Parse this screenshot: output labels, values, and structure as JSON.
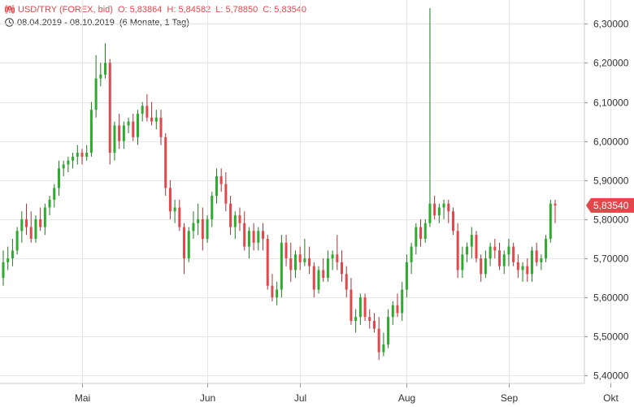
{
  "header": {
    "symbol": "USD/TRY (FOREX, bid)",
    "open": "O: 5,83864",
    "high": "H: 5,84582",
    "low": "L: 5,78850",
    "close": "C: 5,83540",
    "date_range": "08.04.2019 - 08.10.2019",
    "period": "(6 Monate, 1 Tag)"
  },
  "colors": {
    "up": "#2eaa2e",
    "down": "#e2474b",
    "accent": "#e2474b",
    "grid": "#e6e6e6",
    "axis_text": "#333333"
  },
  "chart_data": {
    "type": "candlestick",
    "ylim": [
      5.38,
      6.34
    ],
    "yticks": [
      5.4,
      5.5,
      5.6,
      5.7,
      5.8,
      5.9,
      6.0,
      6.1,
      6.2,
      6.3
    ],
    "ytick_labels": [
      "5,40000",
      "5,50000",
      "5,60000",
      "5,70000",
      "5,80000",
      "5,90000",
      "6,00000",
      "6,10000",
      "6,20000",
      "6,30000"
    ],
    "xticks": [
      {
        "label": "Mai",
        "index": 17
      },
      {
        "label": "Jun",
        "index": 44
      },
      {
        "label": "Jul",
        "index": 64
      },
      {
        "label": "Aug",
        "index": 87
      },
      {
        "label": "Sep",
        "index": 109
      },
      {
        "label": "Okt",
        "index": 131
      }
    ],
    "last_price_label": "5,83540",
    "last_price": 5.8354,
    "grid": true,
    "candles": [
      [
        5.65,
        5.72,
        5.63,
        5.69
      ],
      [
        5.69,
        5.73,
        5.67,
        5.7
      ],
      [
        5.7,
        5.75,
        5.68,
        5.72
      ],
      [
        5.72,
        5.78,
        5.71,
        5.77
      ],
      [
        5.77,
        5.82,
        5.74,
        5.8
      ],
      [
        5.8,
        5.84,
        5.76,
        5.78
      ],
      [
        5.78,
        5.82,
        5.74,
        5.75
      ],
      [
        5.75,
        5.81,
        5.74,
        5.8
      ],
      [
        5.8,
        5.83,
        5.77,
        5.78
      ],
      [
        5.78,
        5.84,
        5.76,
        5.83
      ],
      [
        5.83,
        5.86,
        5.81,
        5.85
      ],
      [
        5.85,
        5.89,
        5.83,
        5.88
      ],
      [
        5.88,
        5.95,
        5.86,
        5.93
      ],
      [
        5.93,
        5.95,
        5.91,
        5.94
      ],
      [
        5.94,
        5.96,
        5.92,
        5.95
      ],
      [
        5.95,
        5.97,
        5.93,
        5.96
      ],
      [
        5.96,
        5.99,
        5.94,
        5.97
      ],
      [
        5.97,
        5.98,
        5.94,
        5.96
      ],
      [
        5.96,
        5.99,
        5.95,
        5.97
      ],
      [
        5.97,
        6.1,
        5.96,
        6.08
      ],
      [
        6.08,
        6.22,
        6.06,
        6.16
      ],
      [
        6.16,
        6.2,
        6.14,
        6.17
      ],
      [
        6.17,
        6.25,
        6.16,
        6.2
      ],
      [
        6.2,
        6.21,
        5.94,
        5.97
      ],
      [
        5.97,
        6.05,
        5.95,
        6.04
      ],
      [
        6.04,
        6.07,
        5.98,
        6.0
      ],
      [
        6.0,
        6.05,
        5.98,
        6.04
      ],
      [
        6.04,
        6.06,
        6.02,
        6.05
      ],
      [
        6.05,
        6.07,
        6.0,
        6.01
      ],
      [
        6.01,
        6.08,
        5.99,
        6.07
      ],
      [
        6.07,
        6.1,
        6.05,
        6.09
      ],
      [
        6.09,
        6.12,
        6.05,
        6.06
      ],
      [
        6.06,
        6.1,
        6.04,
        6.05
      ],
      [
        6.05,
        6.08,
        6.03,
        6.06
      ],
      [
        6.06,
        6.08,
        5.99,
        6.01
      ],
      [
        6.01,
        6.02,
        5.86,
        5.88
      ],
      [
        5.88,
        5.9,
        5.8,
        5.82
      ],
      [
        5.82,
        5.85,
        5.79,
        5.83
      ],
      [
        5.83,
        5.85,
        5.77,
        5.78
      ],
      [
        5.78,
        5.79,
        5.66,
        5.7
      ],
      [
        5.7,
        5.78,
        5.69,
        5.77
      ],
      [
        5.77,
        5.82,
        5.75,
        5.79
      ],
      [
        5.79,
        5.84,
        5.76,
        5.8
      ],
      [
        5.8,
        5.83,
        5.72,
        5.75
      ],
      [
        5.75,
        5.81,
        5.74,
        5.8
      ],
      [
        5.8,
        5.87,
        5.78,
        5.86
      ],
      [
        5.86,
        5.93,
        5.84,
        5.91
      ],
      [
        5.91,
        5.93,
        5.87,
        5.89
      ],
      [
        5.89,
        5.92,
        5.82,
        5.84
      ],
      [
        5.84,
        5.86,
        5.76,
        5.78
      ],
      [
        5.78,
        5.82,
        5.75,
        5.81
      ],
      [
        5.81,
        5.83,
        5.77,
        5.79
      ],
      [
        5.79,
        5.82,
        5.72,
        5.73
      ],
      [
        5.73,
        5.78,
        5.7,
        5.77
      ],
      [
        5.77,
        5.79,
        5.72,
        5.74
      ],
      [
        5.74,
        5.78,
        5.72,
        5.77
      ],
      [
        5.77,
        5.79,
        5.72,
        5.75
      ],
      [
        5.75,
        5.76,
        5.62,
        5.63
      ],
      [
        5.63,
        5.66,
        5.59,
        5.6
      ],
      [
        5.6,
        5.64,
        5.58,
        5.62
      ],
      [
        5.62,
        5.76,
        5.6,
        5.74
      ],
      [
        5.74,
        5.76,
        5.68,
        5.7
      ],
      [
        5.7,
        5.74,
        5.64,
        5.67
      ],
      [
        5.67,
        5.72,
        5.65,
        5.71
      ],
      [
        5.71,
        5.73,
        5.67,
        5.69
      ],
      [
        5.69,
        5.75,
        5.68,
        5.7
      ],
      [
        5.7,
        5.73,
        5.66,
        5.68
      ],
      [
        5.68,
        5.69,
        5.6,
        5.62
      ],
      [
        5.62,
        5.68,
        5.61,
        5.67
      ],
      [
        5.67,
        5.7,
        5.64,
        5.65
      ],
      [
        5.65,
        5.72,
        5.64,
        5.7
      ],
      [
        5.7,
        5.72,
        5.67,
        5.71
      ],
      [
        5.71,
        5.76,
        5.67,
        5.69
      ],
      [
        5.69,
        5.72,
        5.64,
        5.66
      ],
      [
        5.66,
        5.68,
        5.6,
        5.62
      ],
      [
        5.62,
        5.65,
        5.53,
        5.54
      ],
      [
        5.54,
        5.57,
        5.51,
        5.55
      ],
      [
        5.55,
        5.61,
        5.53,
        5.6
      ],
      [
        5.6,
        5.61,
        5.54,
        5.55
      ],
      [
        5.55,
        5.57,
        5.52,
        5.54
      ],
      [
        5.54,
        5.56,
        5.51,
        5.52
      ],
      [
        5.52,
        5.55,
        5.44,
        5.46
      ],
      [
        5.46,
        5.51,
        5.45,
        5.48
      ],
      [
        5.48,
        5.57,
        5.47,
        5.55
      ],
      [
        5.55,
        5.59,
        5.53,
        5.58
      ],
      [
        5.58,
        5.61,
        5.55,
        5.56
      ],
      [
        5.56,
        5.64,
        5.54,
        5.62
      ],
      [
        5.62,
        5.71,
        5.6,
        5.69
      ],
      [
        5.69,
        5.74,
        5.66,
        5.73
      ],
      [
        5.73,
        5.79,
        5.71,
        5.78
      ],
      [
        5.78,
        5.8,
        5.73,
        5.75
      ],
      [
        5.75,
        5.8,
        5.74,
        5.79
      ],
      [
        5.79,
        6.34,
        5.78,
        5.84
      ],
      [
        5.84,
        5.86,
        5.8,
        5.81
      ],
      [
        5.81,
        5.84,
        5.79,
        5.83
      ],
      [
        5.83,
        5.85,
        5.8,
        5.84
      ],
      [
        5.84,
        5.85,
        5.79,
        5.82
      ],
      [
        5.82,
        5.83,
        5.76,
        5.77
      ],
      [
        5.77,
        5.79,
        5.65,
        5.67
      ],
      [
        5.67,
        5.73,
        5.65,
        5.71
      ],
      [
        5.71,
        5.74,
        5.69,
        5.73
      ],
      [
        5.73,
        5.78,
        5.7,
        5.76
      ],
      [
        5.76,
        5.77,
        5.69,
        5.7
      ],
      [
        5.7,
        5.71,
        5.64,
        5.66
      ],
      [
        5.66,
        5.72,
        5.65,
        5.7
      ],
      [
        5.7,
        5.74,
        5.68,
        5.73
      ],
      [
        5.73,
        5.75,
        5.7,
        5.72
      ],
      [
        5.72,
        5.74,
        5.67,
        5.68
      ],
      [
        5.68,
        5.72,
        5.66,
        5.71
      ],
      [
        5.71,
        5.75,
        5.68,
        5.73
      ],
      [
        5.73,
        5.74,
        5.68,
        5.69
      ],
      [
        5.69,
        5.71,
        5.65,
        5.67
      ],
      [
        5.67,
        5.69,
        5.64,
        5.68
      ],
      [
        5.68,
        5.7,
        5.64,
        5.66
      ],
      [
        5.66,
        5.73,
        5.64,
        5.72
      ],
      [
        5.72,
        5.74,
        5.68,
        5.69
      ],
      [
        5.69,
        5.71,
        5.67,
        5.7
      ],
      [
        5.7,
        5.76,
        5.69,
        5.75
      ],
      [
        5.75,
        5.85,
        5.74,
        5.84
      ],
      [
        5.84,
        5.85,
        5.79,
        5.8354
      ]
    ]
  }
}
